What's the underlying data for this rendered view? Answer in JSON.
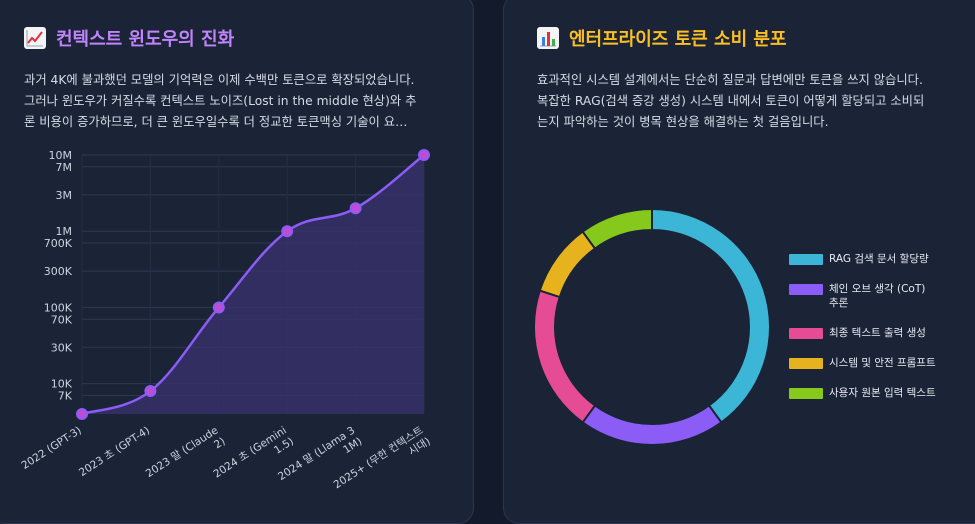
{
  "left_panel": {
    "title": "컨텍스트 윈도우의 진화",
    "title_icon": "chart-increasing-icon",
    "description_lines": [
      "과거 4K에 불과했던 모델의 기억력은 이제 수백만 토큰으로 확장되었습니다.",
      "그러나 윈도우가 커질수록 컨텍스트 노이즈(Lost in the middle 현상)와 추",
      "론 비용이 증가하므로, 더 큰 윈도우일수록 더 정교한 토큰맥싱 기술이 요…"
    ]
  },
  "right_panel": {
    "title": "엔터프라이즈 토큰 소비 분포",
    "title_icon": "bar-chart-icon",
    "description_lines": [
      "효과적인 시스템 설계에서는 단순히 질문과 답변에만 토큰을 쓰지 않습니다.",
      "복잡한 RAG(검색 증강 생성) 시스템 내에서 토큰이 어떻게 할당되고 소비되",
      "는지 파악하는 것이 병목 현상을 해결하는 첫 걸음입니다."
    ]
  },
  "chart_data": [
    {
      "type": "area",
      "title": "컨텍스트 윈도우의 진화",
      "yscale": "log",
      "ylim": [
        4000,
        10000000
      ],
      "ytick_values": [
        7000,
        10000,
        30000,
        70000,
        100000,
        300000,
        700000,
        1000000,
        3000000,
        7000000,
        10000000
      ],
      "ytick_labels": [
        "7K",
        "10K",
        "30K",
        "70K",
        "100K",
        "300K",
        "700K",
        "1M",
        "3M",
        "7M",
        "10M"
      ],
      "categories": [
        [
          "2022 (GPT-3)"
        ],
        [
          "2023 초 (GPT-4)"
        ],
        [
          "2023 말 (Claude",
          "2)"
        ],
        [
          "2024 초 (Gemini",
          "1.5)"
        ],
        [
          "2024 말 (Llama 3",
          "1M)"
        ],
        [
          "2025+ (무한 컨텍스트",
          "시대)"
        ]
      ],
      "values": [
        4000,
        8000,
        100000,
        1000000,
        2000000,
        10000000
      ],
      "color": "#8b5cf6",
      "point_color": "#c04cd6"
    },
    {
      "type": "pie",
      "title": "엔터프라이즈 토큰 소비 분포",
      "labels": [
        [
          "RAG 검색 문서 할당량"
        ],
        [
          "체인 오브 생각 (CoT)",
          "추론"
        ],
        [
          "최종 텍스트 출력 생성"
        ],
        [
          "시스템 및 안전 프롬프트"
        ],
        [
          "사용자 원본 입력 텍스트"
        ]
      ],
      "values": [
        40,
        20,
        20,
        10,
        10
      ],
      "colors": [
        "#3cb6d6",
        "#8b5cf6",
        "#e64c96",
        "#e6b21e",
        "#86c91c"
      ]
    }
  ]
}
